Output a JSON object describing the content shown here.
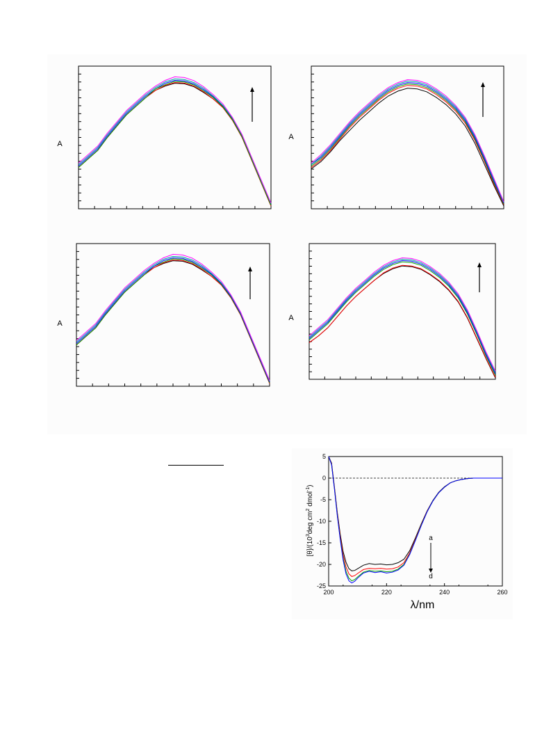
{
  "chart_data": [
    {
      "type": "line",
      "ylabel": "A",
      "arrow": "up",
      "x": [
        0,
        5,
        10,
        15,
        20,
        25,
        30,
        35,
        40,
        45,
        50,
        55,
        60,
        65,
        70,
        75,
        80,
        85,
        90,
        95,
        100
      ],
      "series": [
        {
          "color": "#000000",
          "values": [
            0.29,
            0.35,
            0.41,
            0.5,
            0.58,
            0.66,
            0.72,
            0.78,
            0.83,
            0.86,
            0.88,
            0.876,
            0.855,
            0.815,
            0.77,
            0.71,
            0.62,
            0.5,
            0.34,
            0.18,
            0.02
          ]
        },
        {
          "color": "#ff0000",
          "values": [
            0.29,
            0.35,
            0.41,
            0.5,
            0.58,
            0.66,
            0.72,
            0.78,
            0.83,
            0.865,
            0.885,
            0.881,
            0.86,
            0.82,
            0.77,
            0.71,
            0.62,
            0.5,
            0.34,
            0.18,
            0.02
          ]
        },
        {
          "color": "#0000ff",
          "values": [
            0.3,
            0.36,
            0.42,
            0.51,
            0.59,
            0.67,
            0.73,
            0.79,
            0.84,
            0.88,
            0.9,
            0.896,
            0.875,
            0.835,
            0.785,
            0.72,
            0.63,
            0.51,
            0.35,
            0.19,
            0.03
          ]
        },
        {
          "color": "#00a000",
          "values": [
            0.29,
            0.35,
            0.41,
            0.5,
            0.58,
            0.66,
            0.72,
            0.78,
            0.84,
            0.87,
            0.893,
            0.889,
            0.868,
            0.827,
            0.78,
            0.715,
            0.625,
            0.505,
            0.345,
            0.185,
            0.025
          ]
        },
        {
          "color": "#00a0a0",
          "values": [
            0.31,
            0.37,
            0.43,
            0.52,
            0.6,
            0.68,
            0.74,
            0.8,
            0.85,
            0.89,
            0.91,
            0.906,
            0.885,
            0.845,
            0.79,
            0.725,
            0.635,
            0.515,
            0.355,
            0.195,
            0.035
          ]
        },
        {
          "color": "#ff00ff",
          "values": [
            0.32,
            0.38,
            0.44,
            0.53,
            0.61,
            0.69,
            0.75,
            0.81,
            0.86,
            0.9,
            0.925,
            0.92,
            0.898,
            0.855,
            0.8,
            0.735,
            0.64,
            0.52,
            0.36,
            0.2,
            0.04
          ]
        }
      ]
    },
    {
      "type": "line",
      "ylabel": "A",
      "arrow": "up",
      "x": [
        0,
        5,
        10,
        15,
        20,
        25,
        30,
        35,
        40,
        45,
        50,
        55,
        60,
        65,
        70,
        75,
        80,
        85,
        90,
        95,
        100
      ],
      "series": [
        {
          "color": "#000000",
          "values": [
            0.28,
            0.33,
            0.4,
            0.48,
            0.55,
            0.62,
            0.68,
            0.74,
            0.79,
            0.825,
            0.845,
            0.84,
            0.82,
            0.78,
            0.73,
            0.665,
            0.58,
            0.46,
            0.31,
            0.16,
            0.02
          ]
        },
        {
          "color": "#ff0000",
          "values": [
            0.29,
            0.34,
            0.41,
            0.49,
            0.57,
            0.64,
            0.7,
            0.76,
            0.81,
            0.845,
            0.865,
            0.86,
            0.84,
            0.8,
            0.75,
            0.685,
            0.6,
            0.48,
            0.33,
            0.17,
            0.03
          ]
        },
        {
          "color": "#00a000",
          "values": [
            0.3,
            0.35,
            0.42,
            0.5,
            0.58,
            0.65,
            0.71,
            0.77,
            0.82,
            0.855,
            0.875,
            0.87,
            0.85,
            0.81,
            0.76,
            0.695,
            0.61,
            0.49,
            0.34,
            0.18,
            0.035
          ]
        },
        {
          "color": "#0000ff",
          "values": [
            0.31,
            0.36,
            0.43,
            0.51,
            0.59,
            0.66,
            0.72,
            0.78,
            0.83,
            0.865,
            0.885,
            0.88,
            0.86,
            0.82,
            0.77,
            0.705,
            0.62,
            0.5,
            0.35,
            0.19,
            0.04
          ]
        },
        {
          "color": "#00a0a0",
          "values": [
            0.31,
            0.37,
            0.44,
            0.52,
            0.6,
            0.67,
            0.73,
            0.79,
            0.84,
            0.875,
            0.895,
            0.89,
            0.87,
            0.83,
            0.78,
            0.715,
            0.63,
            0.51,
            0.36,
            0.2,
            0.045
          ]
        },
        {
          "color": "#ff00ff",
          "values": [
            0.32,
            0.38,
            0.45,
            0.53,
            0.61,
            0.68,
            0.74,
            0.8,
            0.85,
            0.885,
            0.905,
            0.9,
            0.88,
            0.84,
            0.79,
            0.725,
            0.64,
            0.52,
            0.37,
            0.21,
            0.05
          ]
        }
      ]
    },
    {
      "type": "line",
      "ylabel": "A",
      "arrow": "up",
      "x": [
        0,
        5,
        10,
        15,
        20,
        25,
        30,
        35,
        40,
        45,
        50,
        55,
        60,
        65,
        70,
        75,
        80,
        85,
        90,
        95,
        100
      ],
      "series": [
        {
          "color": "#000000",
          "values": [
            0.29,
            0.35,
            0.41,
            0.5,
            0.58,
            0.66,
            0.72,
            0.78,
            0.83,
            0.86,
            0.88,
            0.876,
            0.855,
            0.815,
            0.77,
            0.71,
            0.62,
            0.5,
            0.34,
            0.18,
            0.02
          ]
        },
        {
          "color": "#ff0000",
          "values": [
            0.29,
            0.35,
            0.41,
            0.5,
            0.58,
            0.66,
            0.72,
            0.78,
            0.83,
            0.865,
            0.885,
            0.881,
            0.86,
            0.82,
            0.77,
            0.71,
            0.62,
            0.5,
            0.34,
            0.18,
            0.02
          ]
        },
        {
          "color": "#00a000",
          "values": [
            0.29,
            0.35,
            0.41,
            0.5,
            0.58,
            0.66,
            0.72,
            0.78,
            0.84,
            0.87,
            0.893,
            0.889,
            0.868,
            0.827,
            0.78,
            0.715,
            0.625,
            0.505,
            0.345,
            0.185,
            0.025
          ]
        },
        {
          "color": "#0000ff",
          "values": [
            0.3,
            0.36,
            0.42,
            0.51,
            0.59,
            0.67,
            0.73,
            0.79,
            0.84,
            0.88,
            0.9,
            0.896,
            0.875,
            0.835,
            0.785,
            0.72,
            0.63,
            0.51,
            0.35,
            0.19,
            0.03
          ]
        },
        {
          "color": "#00a0a0",
          "values": [
            0.31,
            0.37,
            0.43,
            0.52,
            0.6,
            0.68,
            0.74,
            0.8,
            0.85,
            0.89,
            0.91,
            0.906,
            0.885,
            0.845,
            0.79,
            0.725,
            0.635,
            0.515,
            0.355,
            0.195,
            0.035
          ]
        },
        {
          "color": "#ff00ff",
          "values": [
            0.32,
            0.38,
            0.44,
            0.53,
            0.61,
            0.69,
            0.75,
            0.81,
            0.86,
            0.9,
            0.925,
            0.92,
            0.898,
            0.855,
            0.8,
            0.735,
            0.64,
            0.52,
            0.36,
            0.2,
            0.04
          ]
        }
      ]
    },
    {
      "type": "line",
      "ylabel": "A",
      "arrow": "up",
      "x": [
        0,
        5,
        10,
        15,
        20,
        25,
        30,
        35,
        40,
        45,
        50,
        55,
        60,
        65,
        70,
        75,
        80,
        85,
        90,
        95,
        100
      ],
      "series": [
        {
          "color": "#000000",
          "values": [
            0.27,
            0.32,
            0.38,
            0.46,
            0.54,
            0.61,
            0.67,
            0.73,
            0.78,
            0.815,
            0.835,
            0.83,
            0.81,
            0.77,
            0.72,
            0.655,
            0.57,
            0.45,
            0.3,
            0.15,
            0.01
          ]
        },
        {
          "color": "#ff0000",
          "values": [
            0.27,
            0.32,
            0.38,
            0.46,
            0.54,
            0.61,
            0.67,
            0.73,
            0.785,
            0.82,
            0.84,
            0.835,
            0.815,
            0.775,
            0.725,
            0.66,
            0.575,
            0.455,
            0.305,
            0.155,
            0.015
          ]
        },
        {
          "color": "#00a000",
          "values": [
            0.29,
            0.35,
            0.41,
            0.49,
            0.57,
            0.64,
            0.7,
            0.76,
            0.81,
            0.845,
            0.865,
            0.86,
            0.84,
            0.8,
            0.75,
            0.685,
            0.6,
            0.48,
            0.33,
            0.17,
            0.03
          ]
        },
        {
          "color": "#0000ff",
          "values": [
            0.3,
            0.36,
            0.42,
            0.5,
            0.58,
            0.65,
            0.71,
            0.77,
            0.82,
            0.855,
            0.875,
            0.87,
            0.85,
            0.81,
            0.76,
            0.695,
            0.61,
            0.49,
            0.34,
            0.18,
            0.04
          ]
        },
        {
          "color": "#00a0a0",
          "values": [
            0.31,
            0.37,
            0.43,
            0.51,
            0.59,
            0.66,
            0.72,
            0.78,
            0.83,
            0.865,
            0.885,
            0.88,
            0.86,
            0.82,
            0.77,
            0.705,
            0.62,
            0.5,
            0.35,
            0.19,
            0.05
          ]
        },
        {
          "color": "#ff00ff",
          "values": [
            0.32,
            0.38,
            0.44,
            0.52,
            0.6,
            0.67,
            0.73,
            0.79,
            0.84,
            0.875,
            0.895,
            0.89,
            0.87,
            0.83,
            0.78,
            0.715,
            0.63,
            0.51,
            0.36,
            0.2,
            0.06
          ]
        }
      ]
    },
    {
      "type": "line",
      "xlabel": "λ/nm",
      "ylabel_main": "[θ]/(10",
      "ylabel_sup1": "3",
      "ylabel_mid": "deg cm",
      "ylabel_sup2": "2",
      "ylabel_end": " dmol",
      "ylabel_sup3": "-1",
      "ylabel_close": ")",
      "xlim": [
        200,
        260
      ],
      "ylim": [
        -25,
        5
      ],
      "xticks": [
        "200",
        "220",
        "240",
        "260"
      ],
      "yticks": [
        "5",
        "0",
        "-5",
        "-10",
        "-15",
        "-20",
        "-25"
      ],
      "arrow_start_label": "a",
      "arrow_end_label": "d",
      "x": [
        200,
        201,
        202,
        203,
        204,
        205,
        206,
        207,
        208,
        209,
        210,
        212,
        214,
        216,
        218,
        220,
        222,
        224,
        226,
        228,
        230,
        232,
        234,
        236,
        238,
        240,
        242,
        244,
        246,
        248,
        250,
        252,
        254,
        256,
        258,
        260
      ],
      "series": [
        {
          "color": "#000000",
          "values": [
            5,
            3.5,
            -2,
            -8,
            -13,
            -17,
            -19.5,
            -21,
            -21.5,
            -21.4,
            -21.0,
            -20.2,
            -19.8,
            -20.0,
            -19.9,
            -20.1,
            -20.0,
            -19.6,
            -18.8,
            -16.8,
            -13.8,
            -10.6,
            -7.6,
            -5.2,
            -3.3,
            -2.0,
            -1.1,
            -0.6,
            -0.3,
            -0.1,
            0,
            0,
            0,
            0,
            0,
            0
          ]
        },
        {
          "color": "#ff0000",
          "values": [
            5,
            3.3,
            -2.2,
            -8.3,
            -13.5,
            -17.8,
            -20.6,
            -22.2,
            -22.8,
            -22.6,
            -22.1,
            -21.2,
            -20.9,
            -21.0,
            -20.9,
            -21.1,
            -21.0,
            -20.6,
            -19.6,
            -17.3,
            -14.1,
            -10.8,
            -7.7,
            -5.3,
            -3.4,
            -2.1,
            -1.1,
            -0.6,
            -0.3,
            -0.1,
            0,
            0,
            0,
            0,
            0,
            0
          ]
        },
        {
          "color": "#00a000",
          "values": [
            5,
            3.2,
            -2.4,
            -8.6,
            -14.0,
            -18.6,
            -21.6,
            -23.2,
            -23.8,
            -23.5,
            -22.9,
            -21.8,
            -21.4,
            -21.6,
            -21.5,
            -21.7,
            -21.6,
            -21.1,
            -20.0,
            -17.6,
            -14.3,
            -10.9,
            -7.8,
            -5.3,
            -3.4,
            -2.1,
            -1.1,
            -0.6,
            -0.3,
            -0.1,
            0,
            0,
            0,
            0,
            0,
            0
          ]
        },
        {
          "color": "#0000ff",
          "values": [
            5,
            3.1,
            -2.5,
            -8.8,
            -14.3,
            -19.0,
            -22.2,
            -23.8,
            -24.3,
            -23.9,
            -23.2,
            -22.0,
            -21.6,
            -21.9,
            -21.7,
            -22.0,
            -21.8,
            -21.3,
            -20.2,
            -17.7,
            -14.4,
            -11.0,
            -7.8,
            -5.3,
            -3.4,
            -2.1,
            -1.1,
            -0.6,
            -0.3,
            -0.1,
            0,
            0,
            0,
            0,
            0,
            0
          ]
        }
      ]
    }
  ]
}
